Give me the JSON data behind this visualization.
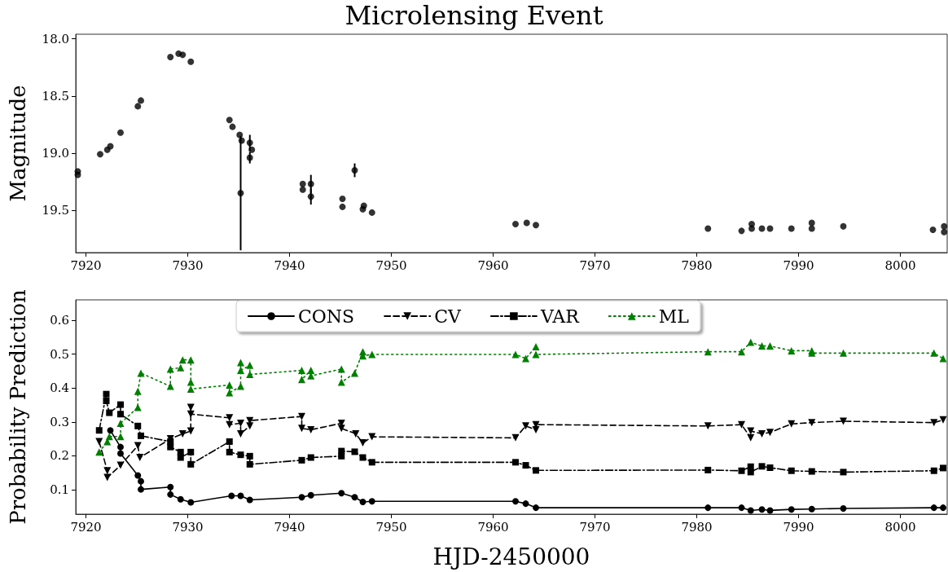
{
  "chart_data": [
    {
      "type": "scatter",
      "title": "Microlensing Event",
      "ylabel": "Magnitude",
      "color": "#000000",
      "marker": "circle",
      "grid": false,
      "xlim": [
        7919,
        8004.6
      ],
      "xticks": [
        7920,
        7930,
        7940,
        7950,
        7960,
        7970,
        7980,
        7990,
        8000
      ],
      "ylim": [
        19.87,
        17.96
      ],
      "yticks": [
        {
          "value": 18,
          "label": "18.0"
        },
        18.5,
        {
          "value": 19,
          "label": "19.0"
        },
        19.5
      ],
      "x": [
        7919.2,
        7919.2,
        7921.4,
        7922.1,
        7922.4,
        7923.4,
        7925.1,
        7925.4,
        7928.3,
        7929.1,
        7929.5,
        7930.3,
        7934.1,
        7934.4,
        7935.1,
        7935.3,
        7935.2,
        7936.1,
        7936.3,
        7936.1,
        7941.3,
        7941.3,
        7942.1,
        7942.1,
        7945.2,
        7945.2,
        7946.4,
        7947.2,
        7947.3,
        7948.1,
        7962.2,
        7963.3,
        7964.2,
        7981.1,
        7984.4,
        7985.4,
        7985.4,
        7986.4,
        7987.2,
        7989.3,
        7991.3,
        7991.3,
        7994.4,
        8003.2,
        8004.3,
        8004.3
      ],
      "values": [
        19.16,
        19.19,
        19.01,
        18.97,
        18.94,
        18.82,
        18.59,
        18.54,
        18.16,
        18.13,
        18.14,
        18.2,
        18.71,
        18.77,
        18.84,
        18.89,
        19.35,
        18.91,
        18.97,
        19.04,
        19.27,
        19.32,
        19.27,
        19.38,
        19.4,
        19.47,
        19.15,
        19.49,
        19.46,
        19.52,
        19.62,
        19.61,
        19.63,
        19.66,
        19.68,
        19.62,
        19.66,
        19.66,
        19.66,
        19.66,
        19.61,
        19.66,
        19.64,
        19.67,
        19.69,
        19.64
      ],
      "errors": [
        null,
        null,
        null,
        null,
        null,
        null,
        null,
        null,
        null,
        null,
        null,
        null,
        null,
        null,
        null,
        null,
        0.5,
        0.07,
        null,
        0.05,
        null,
        null,
        0.08,
        0.07,
        null,
        null,
        0.06,
        null,
        null,
        null,
        null,
        null,
        null,
        null,
        null,
        null,
        null,
        null,
        null,
        null,
        null,
        null,
        null,
        null,
        null,
        null
      ],
      "tick_labels": true
    },
    {
      "type": "line",
      "xlabel": "HJD-2450000",
      "ylabel": "Probability Prediction",
      "grid": false,
      "legend": "top",
      "xlim": [
        7919,
        8004.6
      ],
      "xticks": [
        7920,
        7930,
        7940,
        7950,
        7960,
        7970,
        7980,
        7990,
        8000
      ],
      "ylim": [
        0.028,
        0.66
      ],
      "yticks": [
        0.1,
        0.2,
        0.3,
        0.4,
        0.5,
        0.6
      ],
      "series": [
        {
          "name": "CONS",
          "color": "#000000",
          "marker": "circle",
          "line_style": "solid",
          "x": [
            7922.4,
            7923.4,
            7923.4,
            7925.1,
            7925.4,
            7925.4,
            7928.3,
            7928.3,
            7929.3,
            7930.3,
            7934.3,
            7935.2,
            7936.1,
            7941.2,
            7942.1,
            7945.1,
            7946.4,
            7947.2,
            7948.1,
            7962.2,
            7963.2,
            7964.2,
            7981.1,
            7984.4,
            7985.3,
            7986.4,
            7987.2,
            7989.3,
            7991.3,
            7994.4,
            8003.3,
            8004.2
          ],
          "values": [
            0.275,
            0.226,
            0.207,
            0.142,
            0.125,
            0.101,
            0.108,
            0.086,
            0.072,
            0.063,
            0.082,
            0.082,
            0.07,
            0.078,
            0.084,
            0.09,
            0.078,
            0.064,
            0.066,
            0.066,
            0.059,
            0.047,
            0.047,
            0.047,
            0.039,
            0.042,
            0.039,
            0.042,
            0.043,
            0.045,
            0.047,
            0.047
          ]
        },
        {
          "name": "CV",
          "color": "#000000",
          "marker": "triangle-down",
          "line_style": "dashed",
          "x": [
            7921.3,
            7922.1,
            7922.1,
            7923.4,
            7925.1,
            7925.3,
            7928.3,
            7929.5,
            7930.3,
            7930.3,
            7930.3,
            7934.1,
            7934.1,
            7935.2,
            7935.2,
            7936.1,
            7936.1,
            7941.2,
            7941.2,
            7942.1,
            7945.1,
            7945.1,
            7946.5,
            7947.2,
            7948.1,
            7962.2,
            7963.2,
            7964.2,
            7964.2,
            7981.1,
            7984.4,
            7985.3,
            7985.3,
            7986.4,
            7987.2,
            7989.3,
            7991.3,
            7994.4,
            8003.3,
            8004.2
          ],
          "values": [
            0.242,
            0.156,
            0.136,
            0.172,
            0.23,
            0.195,
            0.25,
            0.265,
            0.273,
            0.343,
            0.323,
            0.312,
            0.292,
            0.296,
            0.265,
            0.288,
            0.304,
            0.316,
            0.281,
            0.277,
            0.296,
            0.281,
            0.265,
            0.238,
            0.256,
            0.253,
            0.288,
            0.277,
            0.292,
            0.288,
            0.292,
            0.253,
            0.273,
            0.265,
            0.269,
            0.294,
            0.298,
            0.302,
            0.298,
            0.306
          ]
        },
        {
          "name": "VAR",
          "color": "#000000",
          "marker": "square",
          "line_style": "dashdot",
          "x": [
            7921.3,
            7922.0,
            7922.0,
            7922.3,
            7923.4,
            7923.4,
            7925.1,
            7925.4,
            7928.3,
            7928.3,
            7929.3,
            7929.3,
            7930.3,
            7930.3,
            7934.1,
            7934.1,
            7935.2,
            7936.1,
            7936.1,
            7941.2,
            7942.1,
            7945.1,
            7945.1,
            7946.4,
            7947.2,
            7948.1,
            7962.2,
            7963.2,
            7964.2,
            7981.1,
            7984.4,
            7985.3,
            7985.3,
            7986.4,
            7987.2,
            7989.3,
            7991.3,
            7994.4,
            8003.3,
            8004.2
          ],
          "values": [
            0.275,
            0.382,
            0.362,
            0.327,
            0.351,
            0.323,
            0.288,
            0.259,
            0.242,
            0.226,
            0.211,
            0.195,
            0.211,
            0.175,
            0.242,
            0.211,
            0.203,
            0.199,
            0.175,
            0.187,
            0.195,
            0.199,
            0.214,
            0.212,
            0.195,
            0.181,
            0.181,
            0.172,
            0.157,
            0.158,
            0.156,
            0.168,
            0.152,
            0.169,
            0.165,
            0.156,
            0.154,
            0.152,
            0.156,
            0.164
          ]
        },
        {
          "name": "ML",
          "color": "#008000",
          "marker": "triangle",
          "line_style": "dotted",
          "x": [
            7921.3,
            7922.1,
            7922.3,
            7923.4,
            7923.4,
            7925.1,
            7925.1,
            7925.4,
            7928.3,
            7928.3,
            7929.3,
            7929.5,
            7930.3,
            7930.3,
            7930.3,
            7934.1,
            7934.1,
            7935.2,
            7935.2,
            7935.2,
            7936.1,
            7936.1,
            7941.2,
            7941.2,
            7942.1,
            7942.1,
            7945.1,
            7945.1,
            7946.4,
            7947.2,
            7947.2,
            7948.1,
            7962.2,
            7963.2,
            7964.2,
            7964.2,
            7981.1,
            7984.4,
            7985.3,
            7986.4,
            7987.2,
            7989.3,
            7991.3,
            7991.3,
            7994.4,
            8003.3,
            8004.2
          ],
          "values": [
            0.211,
            0.242,
            0.257,
            0.257,
            0.296,
            0.343,
            0.39,
            0.444,
            0.405,
            0.456,
            0.46,
            0.483,
            0.483,
            0.417,
            0.397,
            0.409,
            0.386,
            0.405,
            0.475,
            0.452,
            0.467,
            0.44,
            0.452,
            0.425,
            0.452,
            0.436,
            0.456,
            0.417,
            0.444,
            0.507,
            0.495,
            0.499,
            0.499,
            0.487,
            0.522,
            0.499,
            0.507,
            0.507,
            0.535,
            0.524,
            0.524,
            0.51,
            0.51,
            0.503,
            0.503,
            0.503,
            0.487
          ]
        }
      ]
    }
  ]
}
